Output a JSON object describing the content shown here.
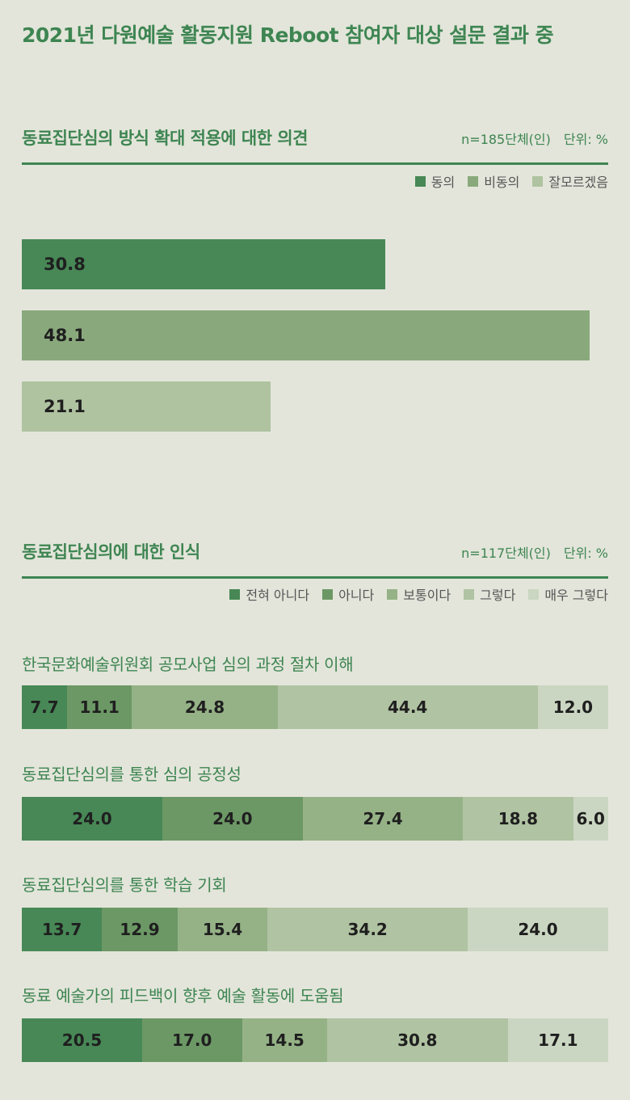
{
  "main_title": "2021년 다원예술 활동지원 Reboot 참여자 대상 설문 결과 중",
  "chart_data": [
    {
      "type": "bar",
      "orientation": "horizontal",
      "title": "동료집단심의 방식 확대 적용에 대한 의견",
      "sample": "n=185단체(인)",
      "unit": "단위: %",
      "categories": [
        "동의",
        "비동의",
        "잘모르겠음"
      ],
      "values": [
        30.8,
        48.1,
        21.1
      ],
      "colors": [
        "#478856",
        "#89a97c",
        "#afc3a0"
      ],
      "xlim": [
        0,
        50
      ],
      "legend_position": "top-right"
    },
    {
      "type": "bar",
      "orientation": "horizontal",
      "stacked": true,
      "title": "동료집단심의에 대한 인식",
      "sample": "n=117단체(인)",
      "unit": "단위: %",
      "legend": [
        "전혀 아니다",
        "아니다",
        "보통이다",
        "그렇다",
        "매우 그렇다"
      ],
      "colors": [
        "#478856",
        "#6c9865",
        "#95b286",
        "#b0c3a2",
        "#cad6c1"
      ],
      "legend_position": "top-right",
      "categories": [
        "한국문화예술위원회 공모사업 심의 과정 절차 이해",
        "동료집단심의를 통한 심의 공정성",
        "동료집단심의를 통한 학습 기회",
        "동료 예술가의 피드백이 향후 예술 활동에 도움됨"
      ],
      "series": [
        {
          "name": "전혀 아니다",
          "values": [
            7.7,
            24.0,
            13.7,
            20.5
          ]
        },
        {
          "name": "아니다",
          "values": [
            11.1,
            24.0,
            12.9,
            17.0
          ]
        },
        {
          "name": "보통이다",
          "values": [
            24.8,
            27.4,
            15.4,
            14.5
          ]
        },
        {
          "name": "그렇다",
          "values": [
            44.4,
            18.8,
            34.2,
            30.8
          ]
        },
        {
          "name": "매우 그렇다",
          "values": [
            12.0,
            6.0,
            24.0,
            17.1
          ]
        }
      ]
    }
  ]
}
